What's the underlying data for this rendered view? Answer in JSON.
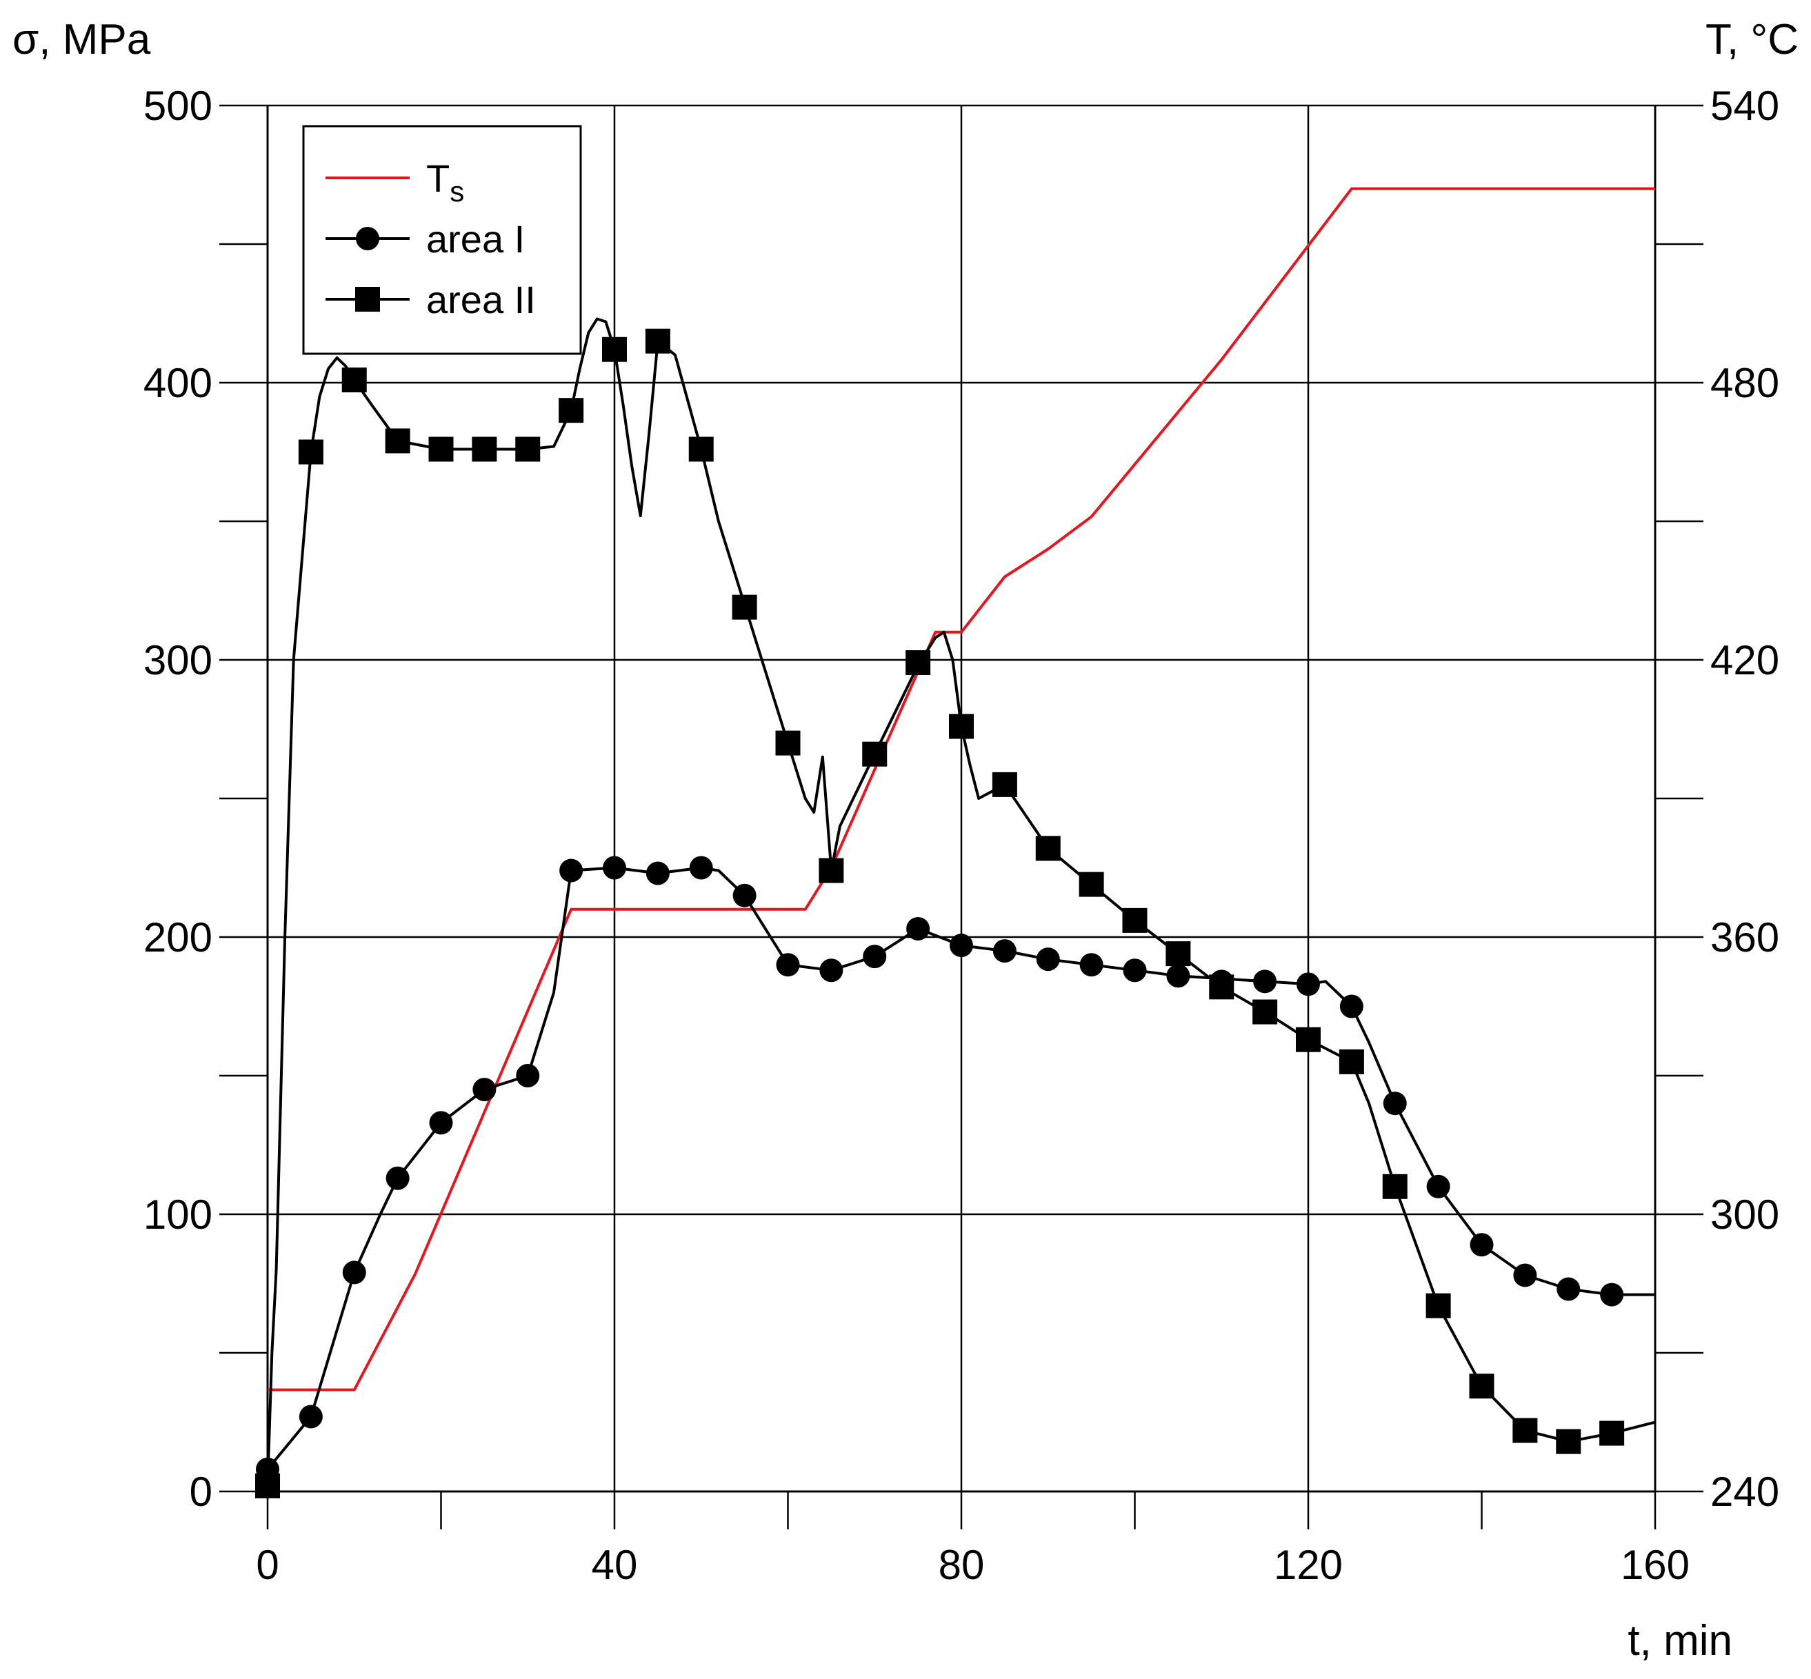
{
  "chart_data": {
    "type": "line",
    "y_left_label": "σ, MPa",
    "y_right_label": "T, °C",
    "x_label": "t, min",
    "xlim": [
      0,
      160
    ],
    "ylim_left": [
      0,
      500
    ],
    "ylim_right": [
      240,
      540
    ],
    "x_ticks_labeled": [
      "0",
      "40",
      "80",
      "120",
      "160"
    ],
    "x_tick_values_labeled": [
      0,
      40,
      80,
      120,
      160
    ],
    "y_left_ticks_labeled": [
      "0",
      "100",
      "200",
      "300",
      "400",
      "500"
    ],
    "y_left_tick_values_labeled": [
      0,
      100,
      200,
      300,
      400,
      500
    ],
    "y_right_ticks_labeled": [
      "240",
      "300",
      "360",
      "420",
      "480",
      "540"
    ],
    "y_right_tick_values_labeled": [
      240,
      300,
      360,
      420,
      480,
      540
    ],
    "grid": true,
    "legend_position": "top-left",
    "legend": [
      {
        "label_main": "T",
        "label_sub": "s",
        "color": "#e8141e",
        "marker": "none"
      },
      {
        "label_main": "area I",
        "label_sub": "",
        "color": "#000000",
        "marker": "circle"
      },
      {
        "label_main": "area II",
        "label_sub": "",
        "color": "#000000",
        "marker": "square"
      }
    ],
    "series": [
      {
        "name": "Ts",
        "axis": "right",
        "color": "#e8141e",
        "x": [
          0,
          10,
          17,
          35,
          36,
          62,
          65,
          77,
          80,
          85,
          90,
          95,
          110,
          125,
          160
        ],
        "y": [
          262,
          262,
          287,
          366,
          366,
          366,
          375,
          426,
          426,
          438,
          444,
          451,
          485,
          522,
          522
        ]
      },
      {
        "name": "area I",
        "axis": "left",
        "color": "#000000",
        "marker": "circle",
        "curve_x": [
          0,
          5,
          10,
          13,
          15,
          20,
          25,
          30,
          33,
          35,
          40,
          45,
          50,
          52,
          55,
          60,
          65,
          70,
          75,
          80,
          85,
          90,
          95,
          100,
          105,
          110,
          115,
          120,
          122,
          125,
          127,
          130,
          135,
          140,
          145,
          150,
          155,
          160
        ],
        "curve_y": [
          8,
          27,
          79,
          100,
          113,
          133,
          145,
          150,
          180,
          224,
          225,
          223,
          225,
          224,
          215,
          190,
          188,
          193,
          203,
          197,
          195,
          192,
          190,
          188,
          186,
          185,
          184,
          183,
          184,
          175,
          162,
          140,
          110,
          89,
          78,
          73,
          71,
          71
        ],
        "marker_x": [
          0,
          5,
          10,
          15,
          20,
          25,
          30,
          35,
          40,
          45,
          50,
          55,
          60,
          65,
          70,
          75,
          80,
          85,
          90,
          95,
          100,
          105,
          110,
          115,
          120,
          125,
          130,
          135,
          140,
          145,
          150,
          155
        ],
        "marker_y": [
          8,
          27,
          79,
          113,
          133,
          145,
          150,
          224,
          225,
          223,
          225,
          215,
          190,
          188,
          193,
          203,
          197,
          195,
          192,
          190,
          188,
          186,
          184,
          184,
          183,
          175,
          140,
          110,
          89,
          78,
          73,
          71
        ]
      },
      {
        "name": "area II",
        "axis": "left",
        "color": "#000000",
        "marker": "square",
        "curve_x": [
          0,
          0.5,
          1,
          2,
          3,
          5,
          6,
          7,
          8,
          9,
          10,
          12,
          15,
          20,
          25,
          30,
          33,
          35,
          36,
          37,
          38,
          39,
          40,
          41,
          42,
          43,
          44,
          45,
          47,
          50,
          52,
          55,
          58,
          60,
          62,
          63,
          64,
          65,
          66,
          70,
          75,
          77,
          78,
          79,
          80,
          81,
          82,
          85,
          90,
          95,
          100,
          105,
          110,
          115,
          120,
          125,
          127,
          130,
          135,
          140,
          145,
          150,
          155,
          160
        ],
        "curve_y": [
          2,
          50,
          80,
          200,
          300,
          375,
          395,
          405,
          409,
          406,
          401,
          392,
          379,
          376,
          376,
          376,
          377,
          390,
          405,
          418,
          423,
          422,
          412,
          392,
          370,
          352,
          382,
          415,
          410,
          376,
          350,
          320,
          290,
          270,
          250,
          245,
          265,
          224,
          240,
          266,
          298,
          308,
          310,
          300,
          276,
          262,
          250,
          255,
          232,
          219,
          206,
          194,
          182,
          173,
          163,
          155,
          140,
          110,
          67,
          38,
          22,
          18,
          21,
          25
        ],
        "marker_x": [
          0,
          5,
          10,
          15,
          20,
          25,
          30,
          35,
          40,
          45,
          50,
          55,
          60,
          65,
          70,
          75,
          80,
          85,
          90,
          95,
          100,
          105,
          110,
          115,
          120,
          125,
          130,
          135,
          140,
          145,
          150,
          155
        ],
        "marker_y": [
          2,
          375,
          401,
          379,
          376,
          376,
          376,
          390,
          412,
          415,
          376,
          319,
          270,
          224,
          266,
          299,
          276,
          255,
          232,
          219,
          206,
          194,
          182,
          173,
          163,
          155,
          110,
          67,
          38,
          22,
          18,
          21
        ]
      }
    ]
  }
}
